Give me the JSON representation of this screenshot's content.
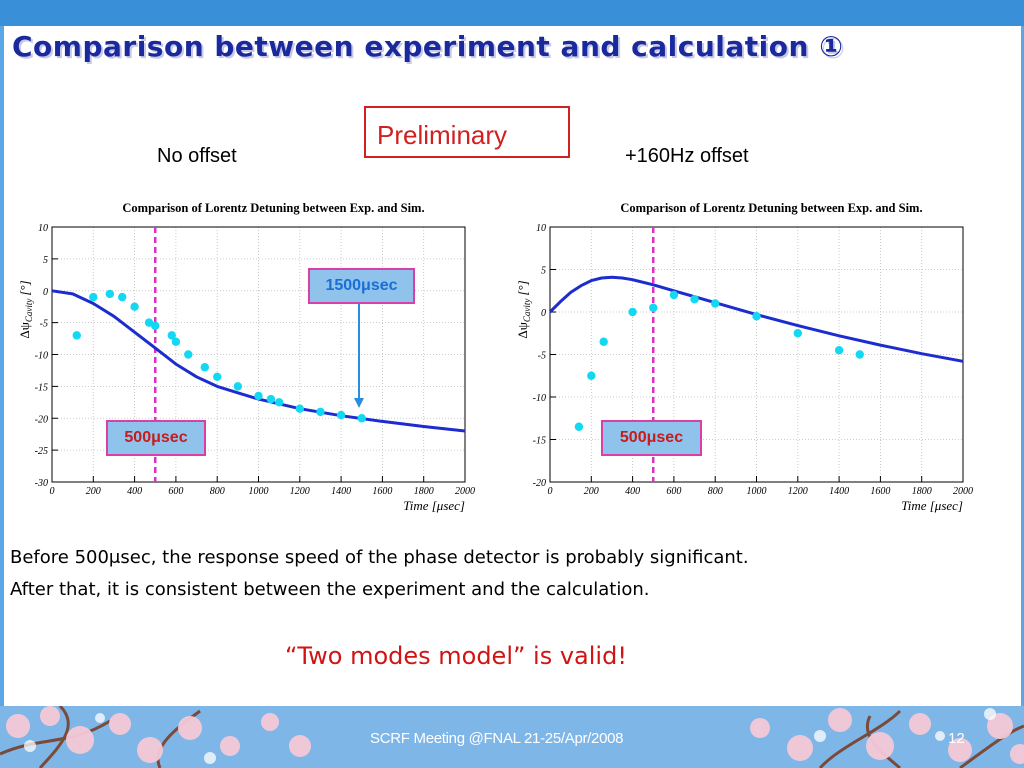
{
  "title": "Comparison between experiment and calculation ①",
  "preliminary_label": "Preliminary",
  "captions": {
    "left": "No offset",
    "right": "+160Hz offset"
  },
  "markers": {
    "left_500": "500μsec",
    "right_500": "500μsec",
    "left_1500": "1500μsec"
  },
  "text": {
    "line1": "Before 500μsec, the response speed of the phase detector is probably significant.",
    "line2": "After that, it is consistent between the experiment and the calculation.",
    "conclusion": "“Two modes model” is valid!"
  },
  "footer": {
    "text": "SCRF Meeting @FNAL 21-25/Apr/2008",
    "page": "12"
  },
  "colors": {
    "title": "#1a2a9c",
    "accent_bar": "#3a8fd9",
    "simulation": "#1d2ccf",
    "experiment": "#12d8f2",
    "marker_line": "#d930c7",
    "emphasis": "#d01414"
  },
  "chart_data": [
    {
      "type": "scatter",
      "title": "Comparison of Lorentz Detuning between Exp. and Sim.",
      "xlabel": "Time [μsec]",
      "ylabel": "Δψ",
      "ylabel_sub": "Cavity",
      "ylabel_unit": "[°]",
      "xlim": [
        0,
        2000
      ],
      "ylim": [
        -30,
        10
      ],
      "xticks": [
        0,
        200,
        400,
        600,
        800,
        1000,
        1200,
        1400,
        1600,
        1800,
        2000
      ],
      "yticks": [
        10,
        5,
        0,
        -5,
        -10,
        -15,
        -20,
        -25,
        -30
      ],
      "grid": true,
      "vline_x": 500,
      "series": [
        {
          "kind": "points",
          "x": [
            120,
            200,
            280,
            340,
            400,
            470,
            500,
            580,
            600,
            660,
            740,
            800,
            900,
            1000,
            1060,
            1100,
            1200,
            1300,
            1400,
            1500
          ],
          "y": [
            -7,
            -1,
            -0.5,
            -1,
            -2.5,
            -5,
            -5.5,
            -7,
            -8,
            -10,
            -12,
            -13.5,
            -15,
            -16.5,
            -17,
            -17.5,
            -18.5,
            -19,
            -19.5,
            -20
          ]
        },
        {
          "kind": "line",
          "x": [
            0,
            100,
            200,
            300,
            400,
            500,
            600,
            700,
            800,
            900,
            1000,
            1200,
            1400,
            1600,
            1800,
            2000
          ],
          "y": [
            0,
            -0.5,
            -2,
            -4,
            -6.5,
            -9,
            -11.5,
            -13.5,
            -15,
            -16,
            -17,
            -18.5,
            -19.6,
            -20.5,
            -21.3,
            -22
          ]
        }
      ]
    },
    {
      "type": "scatter",
      "title": "Comparison of Lorentz Detuning between Exp. and Sim.",
      "xlabel": "Time [μsec]",
      "ylabel": "Δψ",
      "ylabel_sub": "Cavity",
      "ylabel_unit": "[°]",
      "xlim": [
        0,
        2000
      ],
      "ylim": [
        -20,
        10
      ],
      "xticks": [
        0,
        200,
        400,
        600,
        800,
        1000,
        1200,
        1400,
        1600,
        1800,
        2000
      ],
      "yticks": [
        10,
        5,
        0,
        -5,
        -10,
        -15,
        -20
      ],
      "grid": true,
      "vline_x": 500,
      "series": [
        {
          "kind": "points",
          "x": [
            140,
            200,
            260,
            400,
            500,
            600,
            700,
            800,
            1000,
            1200,
            1400,
            1500
          ],
          "y": [
            -13.5,
            -7.5,
            -3.5,
            0,
            0.5,
            2,
            1.5,
            1,
            -0.5,
            -2.5,
            -4.5,
            -5
          ]
        },
        {
          "kind": "line",
          "x": [
            0,
            50,
            100,
            150,
            200,
            250,
            300,
            350,
            400,
            500,
            600,
            700,
            800,
            1000,
            1200,
            1400,
            1600,
            1800,
            2000
          ],
          "y": [
            0,
            1.2,
            2.3,
            3.1,
            3.7,
            4.0,
            4.1,
            4.0,
            3.8,
            3.2,
            2.5,
            1.8,
            1.1,
            -0.3,
            -1.6,
            -2.8,
            -3.9,
            -4.9,
            -5.8
          ]
        }
      ]
    }
  ]
}
